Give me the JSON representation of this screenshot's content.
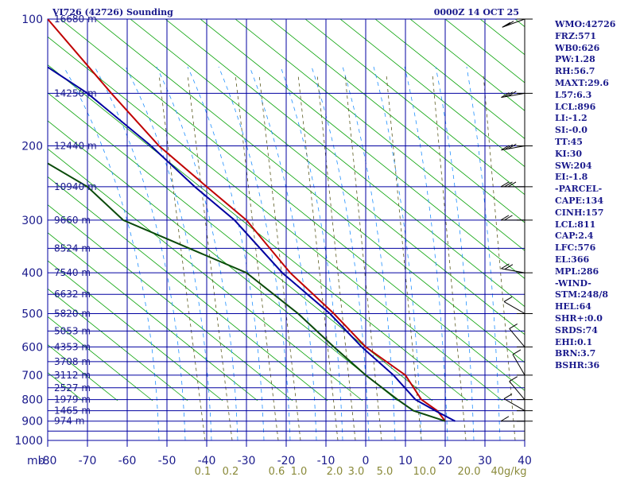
{
  "header": {
    "station": "VI726 (42726) Sounding",
    "valid_time": "0000Z 14 OCT 25"
  },
  "chart_data": {
    "type": "line",
    "title": "VI726 (42726) Sounding",
    "x_axis": {
      "unit_label": "mb",
      "range": [
        -80,
        40
      ],
      "ticks": [
        -80,
        -70,
        -60,
        -50,
        -40,
        -30,
        -20,
        -10,
        0,
        10,
        20,
        30,
        40
      ],
      "tick_labels": [
        "-80",
        "-70",
        "-60",
        "-50",
        "-40",
        "-30",
        "-20",
        "-10",
        "0",
        "10",
        "20",
        "30",
        "40"
      ]
    },
    "y_axis": {
      "scale": "log",
      "range": [
        1000,
        100
      ],
      "ticks": [
        100,
        200,
        300,
        400,
        500,
        600,
        700,
        800,
        900,
        1000
      ],
      "tick_labels": [
        "100",
        "200",
        "300",
        "400",
        "500",
        "600",
        "700",
        "800",
        "900",
        "1000"
      ]
    },
    "height_labels": [
      {
        "p": 100,
        "text": "16680 m"
      },
      {
        "p": 150,
        "text": "14250 m"
      },
      {
        "p": 200,
        "text": "12440 m"
      },
      {
        "p": 250,
        "text": "10940 m"
      },
      {
        "p": 300,
        "text": "9660 m"
      },
      {
        "p": 350,
        "text": "8524 m"
      },
      {
        "p": 400,
        "text": "7540 m"
      },
      {
        "p": 450,
        "text": "6632 m"
      },
      {
        "p": 500,
        "text": "5820 m"
      },
      {
        "p": 550,
        "text": "5053 m"
      },
      {
        "p": 600,
        "text": "4353 m"
      },
      {
        "p": 650,
        "text": "3708 m"
      },
      {
        "p": 700,
        "text": "3112 m"
      },
      {
        "p": 750,
        "text": "2527 m"
      },
      {
        "p": 800,
        "text": "1979 m"
      },
      {
        "p": 850,
        "text": "1465 m"
      },
      {
        "p": 900,
        "text": "974 m"
      }
    ],
    "mixing_ratio_labels": [
      {
        "w": 0.1,
        "text": "0.1"
      },
      {
        "w": 0.2,
        "text": "0.2"
      },
      {
        "w": 0.6,
        "text": "0.6"
      },
      {
        "w": 1.0,
        "text": "1.0"
      },
      {
        "w": 2.0,
        "text": "2.0"
      },
      {
        "w": 3.0,
        "text": "3.0"
      },
      {
        "w": 5.0,
        "text": "5.0"
      },
      {
        "w": 10.0,
        "text": "10.0"
      },
      {
        "w": 20.0,
        "text": "20.0"
      },
      {
        "w": 40.0,
        "text": "40g/kg"
      }
    ],
    "series": [
      {
        "name": "Temperature",
        "color": "#c00000",
        "points": [
          {
            "p": 900,
            "t": 20
          },
          {
            "p": 850,
            "t": 18
          },
          {
            "p": 800,
            "t": 14
          },
          {
            "p": 700,
            "t": 10
          },
          {
            "p": 600,
            "t": 0
          },
          {
            "p": 500,
            "t": -8
          },
          {
            "p": 400,
            "t": -19
          },
          {
            "p": 300,
            "t": -30
          },
          {
            "p": 250,
            "t": -40
          },
          {
            "p": 200,
            "t": -52
          },
          {
            "p": 150,
            "t": -64
          },
          {
            "p": 100,
            "t": -80
          }
        ]
      },
      {
        "name": "Dewpoint",
        "color": "#0a4a0a",
        "points": [
          {
            "p": 900,
            "t": 20
          },
          {
            "p": 850,
            "t": 12
          },
          {
            "p": 800,
            "t": 8
          },
          {
            "p": 700,
            "t": 0
          },
          {
            "p": 600,
            "t": -8
          },
          {
            "p": 500,
            "t": -17
          },
          {
            "p": 400,
            "t": -30
          },
          {
            "p": 300,
            "t": -61
          },
          {
            "p": 250,
            "t": -70
          },
          {
            "p": 220,
            "t": -80
          }
        ]
      },
      {
        "name": "Parcel",
        "color": "#0000a0",
        "points": [
          {
            "p": 900,
            "t": 22.5
          },
          {
            "p": 850,
            "t": 17.5
          },
          {
            "p": 800,
            "t": 12.5
          },
          {
            "p": 700,
            "t": 7
          },
          {
            "p": 600,
            "t": -1
          },
          {
            "p": 500,
            "t": -9
          },
          {
            "p": 400,
            "t": -21
          },
          {
            "p": 300,
            "t": -33
          },
          {
            "p": 250,
            "t": -43
          },
          {
            "p": 200,
            "t": -54
          },
          {
            "p": 150,
            "t": -70
          },
          {
            "p": 130,
            "t": -80
          }
        ]
      }
    ],
    "wind_barbs": [
      {
        "p": 900,
        "dir": 270,
        "spd": 10
      },
      {
        "p": 850,
        "dir": 300,
        "spd": 5
      },
      {
        "p": 800,
        "dir": 320,
        "spd": 5
      },
      {
        "p": 700,
        "dir": 330,
        "spd": 5
      },
      {
        "p": 600,
        "dir": 320,
        "spd": 10
      },
      {
        "p": 500,
        "dir": 300,
        "spd": 10
      },
      {
        "p": 400,
        "dir": 280,
        "spd": 15
      },
      {
        "p": 300,
        "dir": 270,
        "spd": 20
      },
      {
        "p": 250,
        "dir": 270,
        "spd": 25
      },
      {
        "p": 200,
        "dir": 260,
        "spd": 25
      },
      {
        "p": 150,
        "dir": 260,
        "spd": 30
      },
      {
        "p": 100,
        "dir": 250,
        "spd": 20
      }
    ],
    "grid": true
  },
  "indices": [
    "WMO:42726",
    "FRZ:571",
    "WB0:626",
    "PW:1.28",
    "RH:56.7",
    "MAXT:29.6",
    "L57:6.3",
    "LCL:896",
    "LI:-1.2",
    "SI:-0.0",
    "TT:45",
    "KI:30",
    "SW:204",
    "EI:-1.8",
    "-PARCEL-",
    "CAPE:134",
    "CINH:157",
    "LCL:811",
    "CAP:2.4",
    "LFC:576",
    "EL:366",
    "MPL:286",
    "-WIND-",
    "STM:248/8",
    "HEL:64",
    "SHR+:0.0",
    "SRDS:74",
    "EHI:0.1",
    "BRN:3.7",
    "BSHR:36"
  ],
  "colors": {
    "grid_blue": "#0000a0",
    "dry_adiabat_green": "#00a000",
    "moist_adiabat_blue": "#2090ff",
    "mixing_ratio_olive": "#5a5a20",
    "text_navy": "#1a1a8c"
  }
}
